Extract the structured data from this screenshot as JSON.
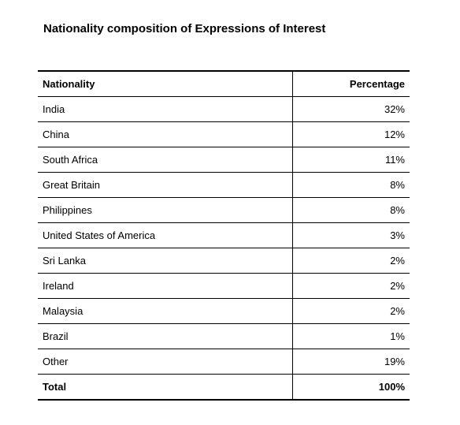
{
  "title": "Nationality composition of Expressions of Interest",
  "table": {
    "headers": {
      "nationality": "Nationality",
      "percentage": "Percentage"
    },
    "rows": [
      {
        "nationality": "India",
        "percentage": "32%"
      },
      {
        "nationality": "China",
        "percentage": "12%"
      },
      {
        "nationality": "South Africa",
        "percentage": "11%"
      },
      {
        "nationality": "Great Britain",
        "percentage": "8%"
      },
      {
        "nationality": "Philippines",
        "percentage": "8%"
      },
      {
        "nationality": "United States of America",
        "percentage": "3%"
      },
      {
        "nationality": "Sri Lanka",
        "percentage": "2%"
      },
      {
        "nationality": "Ireland",
        "percentage": "2%"
      },
      {
        "nationality": "Malaysia",
        "percentage": "2%"
      },
      {
        "nationality": "Brazil",
        "percentage": "1%"
      },
      {
        "nationality": "Other",
        "percentage": "19%"
      }
    ],
    "total": {
      "label": "Total",
      "percentage": "100%"
    }
  }
}
